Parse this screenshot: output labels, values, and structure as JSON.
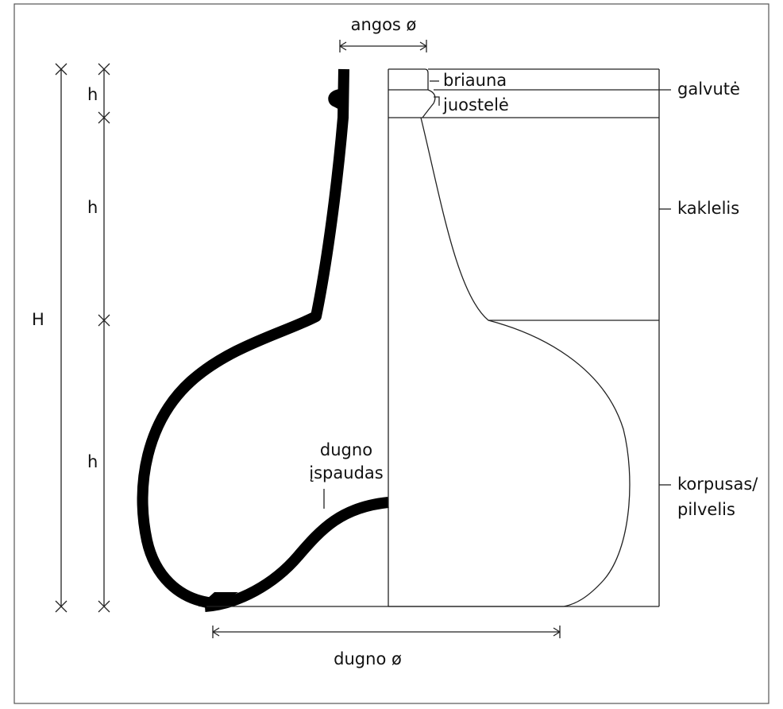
{
  "labels": {
    "opening": "angos ø",
    "rim": "briauna",
    "band": "juostelė",
    "head": "galvutė",
    "neck": "kaklelis",
    "body": [
      "korpusas/",
      "pilvelis"
    ],
    "kick": [
      "dugno",
      "įspaudas"
    ],
    "height": "H",
    "part_height": [
      "h",
      "h",
      "h"
    ],
    "base": "dugno ø"
  }
}
